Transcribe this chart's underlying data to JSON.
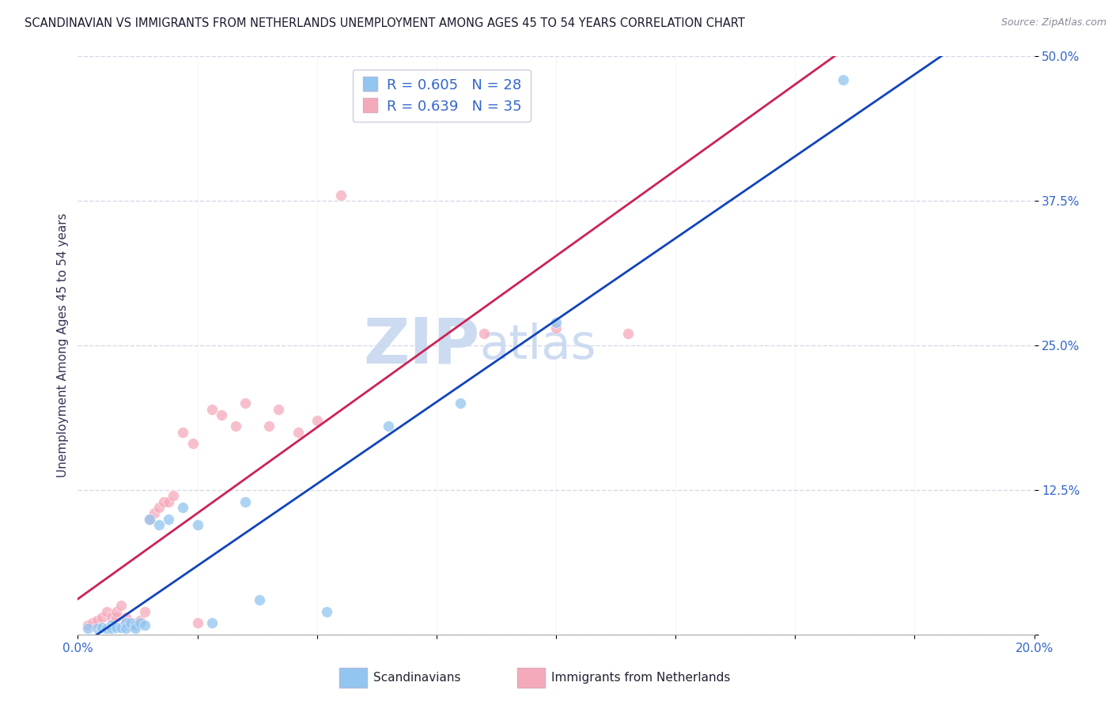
{
  "title": "SCANDINAVIAN VS IMMIGRANTS FROM NETHERLANDS UNEMPLOYMENT AMONG AGES 45 TO 54 YEARS CORRELATION CHART",
  "source": "Source: ZipAtlas.com",
  "ylabel": "Unemployment Among Ages 45 to 54 years",
  "xlim": [
    0.0,
    0.2
  ],
  "ylim": [
    0.0,
    0.5
  ],
  "yticks": [
    0.0,
    0.125,
    0.25,
    0.375,
    0.5
  ],
  "yticklabels": [
    "",
    "12.5%",
    "25.0%",
    "37.5%",
    "50.0%"
  ],
  "scandinavian_color": "#92C5F0",
  "netherlands_color": "#F5AABB",
  "blue_line_color": "#1144BB",
  "pink_line_color": "#CC2255",
  "axis_label_color": "#3366CC",
  "watermark_text": "ZIPatlas",
  "watermark_color": "#C5D8F0",
  "background_color": "#FFFFFF",
  "grid_color": "#D8D8E8",
  "scatter_size": 100,
  "blue_x": [
    0.002,
    0.004,
    0.005,
    0.006,
    0.007,
    0.007,
    0.008,
    0.009,
    0.01,
    0.01,
    0.011,
    0.012,
    0.012,
    0.013,
    0.014,
    0.015,
    0.017,
    0.019,
    0.022,
    0.025,
    0.028,
    0.035,
    0.038,
    0.052,
    0.065,
    0.08,
    0.1,
    0.16
  ],
  "blue_y": [
    0.005,
    0.005,
    0.006,
    0.005,
    0.008,
    0.005,
    0.006,
    0.006,
    0.01,
    0.005,
    0.01,
    0.008,
    0.005,
    0.01,
    0.008,
    0.1,
    0.095,
    0.1,
    0.11,
    0.095,
    0.01,
    0.115,
    0.03,
    0.02,
    0.18,
    0.2,
    0.27,
    0.48
  ],
  "pink_x": [
    0.002,
    0.003,
    0.004,
    0.005,
    0.006,
    0.007,
    0.008,
    0.008,
    0.009,
    0.01,
    0.011,
    0.012,
    0.013,
    0.014,
    0.015,
    0.016,
    0.017,
    0.018,
    0.019,
    0.02,
    0.022,
    0.024,
    0.025,
    0.028,
    0.03,
    0.033,
    0.035,
    0.04,
    0.042,
    0.046,
    0.05,
    0.055,
    0.085,
    0.1,
    0.115
  ],
  "pink_y": [
    0.008,
    0.01,
    0.012,
    0.015,
    0.02,
    0.015,
    0.015,
    0.02,
    0.025,
    0.015,
    0.008,
    0.01,
    0.012,
    0.02,
    0.1,
    0.105,
    0.11,
    0.115,
    0.115,
    0.12,
    0.175,
    0.165,
    0.01,
    0.195,
    0.19,
    0.18,
    0.2,
    0.18,
    0.195,
    0.175,
    0.185,
    0.38,
    0.26,
    0.265,
    0.26
  ]
}
